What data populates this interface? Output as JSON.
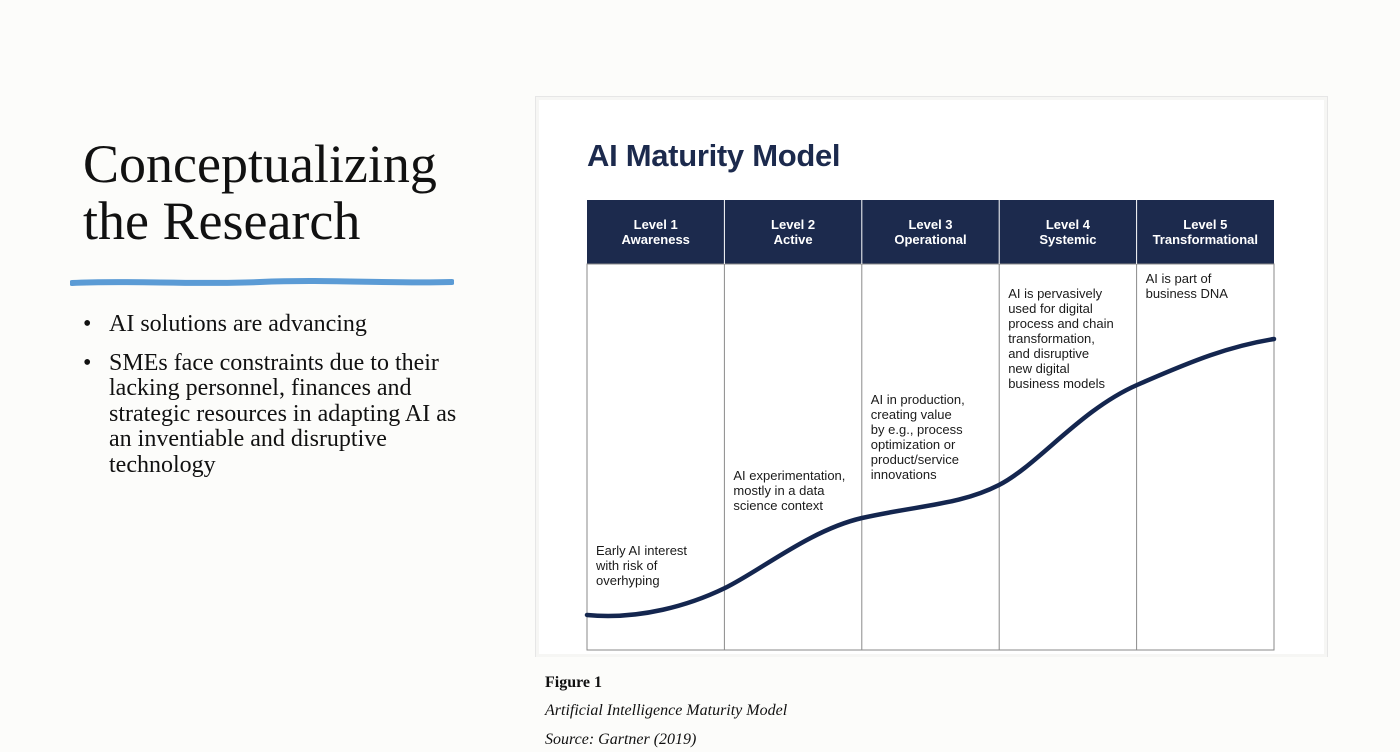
{
  "slide": {
    "title": "Conceptualizing\nthe Research",
    "accent_color": "#5b9bd5",
    "bullets": [
      "AI solutions are advancing",
      "SMEs face constraints due to their lacking personnel, finances and strategic resources in adapting AI as an inventiable and disruptive technology"
    ]
  },
  "figure": {
    "heading": "AI Maturity Model",
    "header_color": "#1c2a4d",
    "curve_color": "#14264f",
    "levels": [
      {
        "level": "Level 1",
        "name": "Awareness",
        "description": [
          "Early AI interest",
          "with risk of",
          "overhyping"
        ]
      },
      {
        "level": "Level 2",
        "name": "Active",
        "description": [
          "AI experimentation,",
          "mostly in a data",
          "science context"
        ]
      },
      {
        "level": "Level 3",
        "name": "Operational",
        "description": [
          "AI in production,",
          "creating value",
          "by e.g., process",
          "optimization or",
          "product/service",
          "innovations"
        ]
      },
      {
        "level": "Level 4",
        "name": "Systemic",
        "description": [
          "AI is pervasively",
          "used for digital",
          "process and chain",
          "transformation,",
          "and disruptive",
          "new digital",
          "business models"
        ]
      },
      {
        "level": "Level 5",
        "name": "Transformational",
        "description": [
          "AI is part of",
          "business DNA"
        ]
      }
    ],
    "label": "Figure 1",
    "caption": "Artificial Intelligence Maturity Model",
    "source": "Source: Gartner (2019)"
  }
}
